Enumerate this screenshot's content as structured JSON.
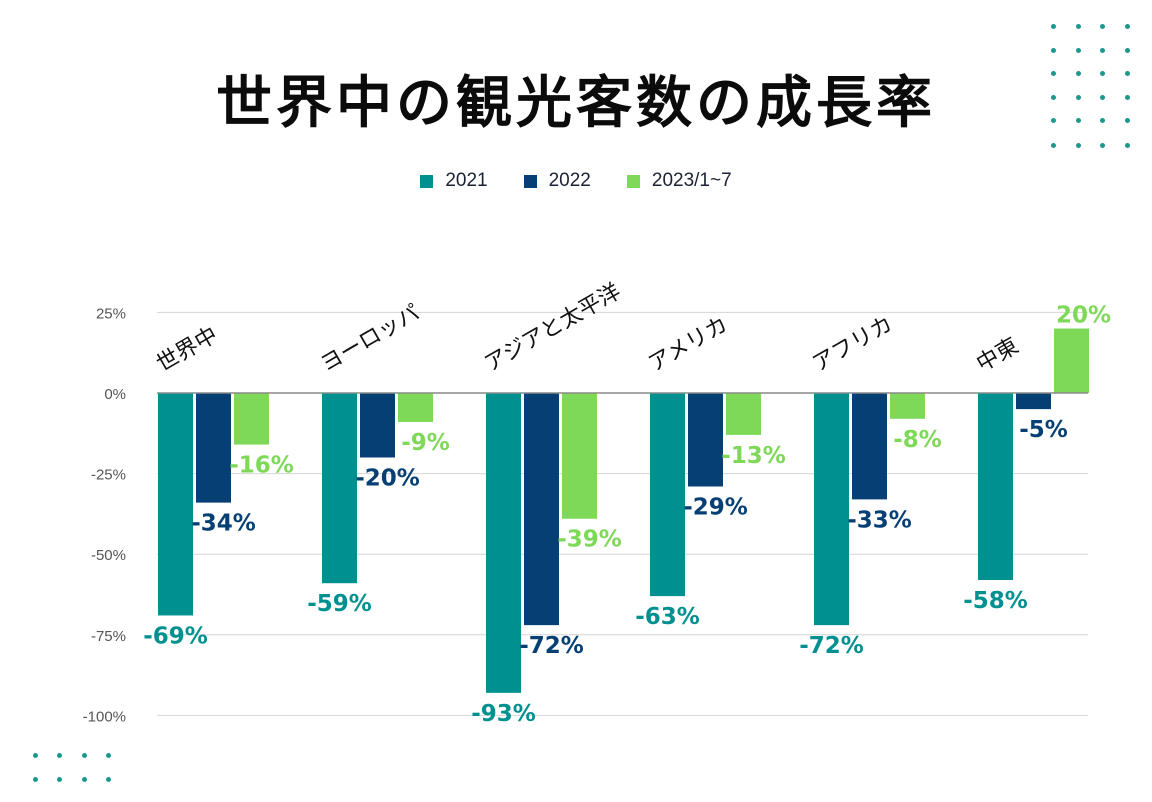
{
  "chart_data": {
    "type": "bar",
    "title": "世界中の観光客数の成長率",
    "xlabel": "",
    "ylabel": "",
    "categories": [
      "世界中",
      "ヨーロッパ",
      "アジアと太平洋",
      "アメリカ",
      "アフリカ",
      "中東"
    ],
    "series": [
      {
        "name": "2021",
        "color": "#00908f",
        "values": [
          -69,
          -59,
          -93,
          -63,
          -72,
          -58
        ]
      },
      {
        "name": "2022",
        "color": "#063f73",
        "values": [
          -34,
          -20,
          -72,
          -29,
          -33,
          -5
        ]
      },
      {
        "name": "2023/1~7",
        "color": "#7dd957",
        "values": [
          -16,
          -9,
          -39,
          -13,
          -8,
          20
        ]
      }
    ],
    "data_labels": [
      [
        "-69%",
        "-59%",
        "-93%",
        "-63%",
        "-72%",
        "-58%"
      ],
      [
        "-34%",
        "-20%",
        "-72%",
        "-29%",
        "-33%",
        "-5%"
      ],
      [
        "-16%",
        "-9%",
        "-39%",
        "-13%",
        "-8%",
        "20%"
      ]
    ],
    "yticks": [
      25,
      0,
      -25,
      -50,
      -75,
      -100
    ],
    "ytick_labels": [
      "25%",
      "0%",
      "-25%",
      "-50%",
      "-75%",
      "-100%"
    ],
    "ylim": [
      -100,
      25
    ],
    "grid": true,
    "legend_position": "top-center"
  }
}
